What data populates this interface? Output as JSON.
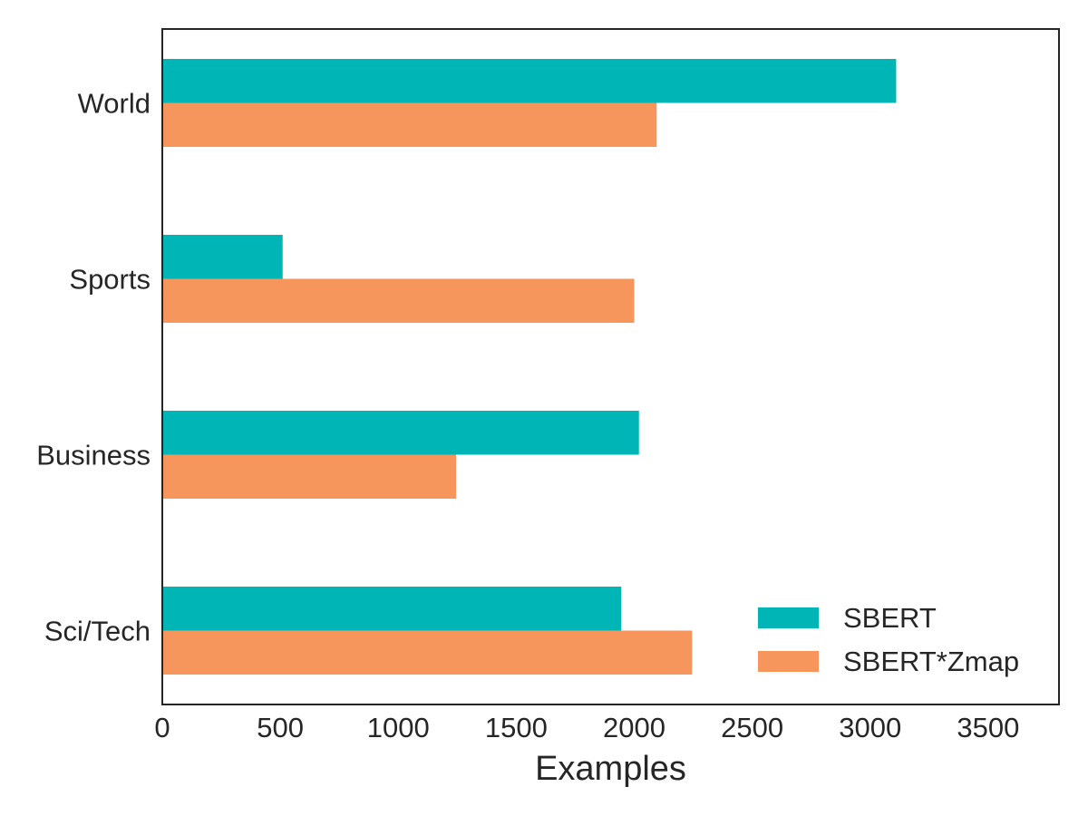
{
  "chart_data": {
    "type": "bar",
    "orientation": "horizontal",
    "categories": [
      "World",
      "Sports",
      "Business",
      "Sci/Tech"
    ],
    "series": [
      {
        "name": "SBERT",
        "color": "#00b5b5",
        "values": [
          3110,
          510,
          2020,
          1945
        ]
      },
      {
        "name": "SBERT*Zmap",
        "color": "#f7965c",
        "values": [
          2095,
          2000,
          1245,
          2245
        ]
      }
    ],
    "xlabel": "Examples",
    "ylabel": "",
    "title": "",
    "xlim": [
      0,
      3800
    ],
    "xticks": [
      0,
      500,
      1000,
      1500,
      2000,
      2500,
      3000,
      3500
    ],
    "grid": false,
    "legend_position": "lower-right"
  }
}
